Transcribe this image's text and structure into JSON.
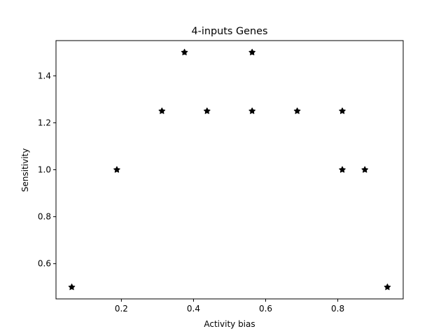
{
  "chart_data": {
    "type": "scatter",
    "title": "4-inputs Genes",
    "xlabel": "Activity bias",
    "ylabel": "Sensitivity",
    "xlim": [
      0.0188,
      0.9813
    ],
    "ylim": [
      0.45,
      1.55
    ],
    "xticks": [
      0.2,
      0.4,
      0.6,
      0.8
    ],
    "xtick_labels": [
      "0.2",
      "0.4",
      "0.6",
      "0.8"
    ],
    "yticks": [
      0.6,
      0.8,
      1.0,
      1.2,
      1.4
    ],
    "ytick_labels": [
      "0.6",
      "0.8",
      "1.0",
      "1.2",
      "1.4"
    ],
    "grid": false,
    "marker": "star",
    "marker_color": "#000000",
    "points": [
      {
        "x": 0.0625,
        "y": 0.5
      },
      {
        "x": 0.1875,
        "y": 1.0
      },
      {
        "x": 0.3125,
        "y": 1.25
      },
      {
        "x": 0.375,
        "y": 1.5
      },
      {
        "x": 0.4375,
        "y": 1.25
      },
      {
        "x": 0.5625,
        "y": 1.5
      },
      {
        "x": 0.5625,
        "y": 1.25
      },
      {
        "x": 0.6875,
        "y": 1.25
      },
      {
        "x": 0.8125,
        "y": 1.25
      },
      {
        "x": 0.8125,
        "y": 1.0
      },
      {
        "x": 0.875,
        "y": 1.0
      },
      {
        "x": 0.9375,
        "y": 0.5
      }
    ]
  }
}
